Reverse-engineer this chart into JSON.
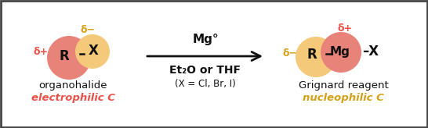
{
  "bg_color": "#ffffff",
  "border_color": "#444444",
  "pink_color": "#e8837a",
  "yellow_color": "#f5c97a",
  "red_color": "#e8524a",
  "orange_color": "#d4a017",
  "black": "#111111",
  "left_R_label": "R",
  "left_X_label": "X",
  "left_delta_plus": "δ+",
  "left_delta_minus": "δ−",
  "left_name": "organohalide",
  "left_italic": "electrophilic C",
  "right_R_label": "R",
  "right_Mg_label": "Mg",
  "right_X_ext": "–X",
  "right_delta_plus": "δ+",
  "right_delta_minus": "δ−",
  "right_name": "Grignard reagent",
  "right_italic": "nucleophilic C",
  "arrow_top_label": "Mg°",
  "arrow_bottom_label1": "Et₂O or THF",
  "arrow_bottom_label2": "(X = Cl, Br, I)"
}
